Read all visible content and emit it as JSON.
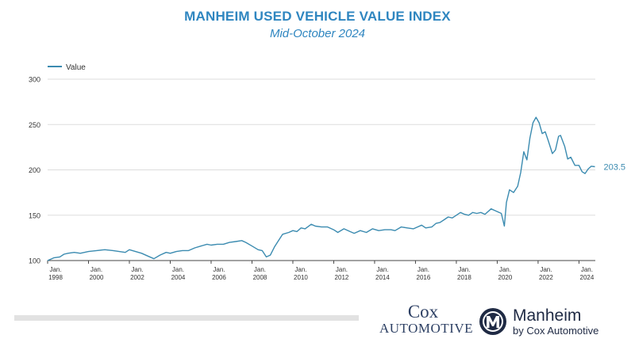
{
  "header": {
    "title": "MANHEIM USED VEHICLE VALUE INDEX",
    "subtitle": "Mid-October 2024"
  },
  "colors": {
    "line": "#3b8bb0",
    "title": "#2f86c0",
    "axis": "#666666",
    "grid": "#dddddd"
  },
  "chart_data": {
    "type": "line",
    "title": "MANHEIM USED VEHICLE VALUE INDEX",
    "subtitle": "Mid-October 2024",
    "legend": {
      "position": "top-left",
      "entries": [
        "Value"
      ]
    },
    "grid": true,
    "ylim": [
      100,
      300
    ],
    "xlim": [
      1998.0,
      2024.8
    ],
    "y_ticks": [
      100,
      150,
      200,
      250,
      300
    ],
    "x_ticks": [
      {
        "value": 1998,
        "line1": "Jan.",
        "line2": "1998"
      },
      {
        "value": 2000,
        "line1": "Jan.",
        "line2": "2000"
      },
      {
        "value": 2002,
        "line1": "Jan.",
        "line2": "2002"
      },
      {
        "value": 2004,
        "line1": "Jan.",
        "line2": "2004"
      },
      {
        "value": 2006,
        "line1": "Jan.",
        "line2": "2006"
      },
      {
        "value": 2008,
        "line1": "Jan.",
        "line2": "2008"
      },
      {
        "value": 2010,
        "line1": "Jan.",
        "line2": "2010"
      },
      {
        "value": 2012,
        "line1": "Jan.",
        "line2": "2012"
      },
      {
        "value": 2014,
        "line1": "Jan.",
        "line2": "2014"
      },
      {
        "value": 2016,
        "line1": "Jan.",
        "line2": "2016"
      },
      {
        "value": 2018,
        "line1": "Jan.",
        "line2": "2018"
      },
      {
        "value": 2020,
        "line1": "Jan.",
        "line2": "2020"
      },
      {
        "value": 2022,
        "line1": "Jan.",
        "line2": "2022"
      },
      {
        "value": 2024,
        "line1": "Jan.",
        "line2": "2024"
      }
    ],
    "last_value_label": "203.5",
    "series": [
      {
        "name": "Value",
        "points": [
          [
            1998.0,
            100
          ],
          [
            1998.3,
            103
          ],
          [
            1998.6,
            104
          ],
          [
            1998.8,
            107
          ],
          [
            1999.0,
            108
          ],
          [
            1999.3,
            109
          ],
          [
            1999.6,
            108
          ],
          [
            2000.0,
            110
          ],
          [
            2000.4,
            111
          ],
          [
            2000.8,
            112
          ],
          [
            2001.2,
            111
          ],
          [
            2001.5,
            110
          ],
          [
            2001.8,
            109
          ],
          [
            2002.0,
            112
          ],
          [
            2002.3,
            110
          ],
          [
            2002.6,
            108
          ],
          [
            2002.9,
            105
          ],
          [
            2003.2,
            102
          ],
          [
            2003.5,
            106
          ],
          [
            2003.8,
            109
          ],
          [
            2004.0,
            108
          ],
          [
            2004.3,
            110
          ],
          [
            2004.6,
            111
          ],
          [
            2004.9,
            111
          ],
          [
            2005.2,
            114
          ],
          [
            2005.5,
            116
          ],
          [
            2005.8,
            118
          ],
          [
            2006.0,
            117
          ],
          [
            2006.3,
            118
          ],
          [
            2006.6,
            118
          ],
          [
            2006.9,
            120
          ],
          [
            2007.2,
            121
          ],
          [
            2007.5,
            122
          ],
          [
            2007.7,
            120
          ],
          [
            2008.0,
            116
          ],
          [
            2008.3,
            112
          ],
          [
            2008.5,
            111
          ],
          [
            2008.7,
            104
          ],
          [
            2008.9,
            106
          ],
          [
            2009.1,
            115
          ],
          [
            2009.3,
            122
          ],
          [
            2009.5,
            129
          ],
          [
            2009.8,
            131
          ],
          [
            2010.0,
            133
          ],
          [
            2010.2,
            132
          ],
          [
            2010.4,
            136
          ],
          [
            2010.6,
            135
          ],
          [
            2010.9,
            140
          ],
          [
            2011.1,
            138
          ],
          [
            2011.4,
            137
          ],
          [
            2011.7,
            137
          ],
          [
            2012.0,
            134
          ],
          [
            2012.2,
            131
          ],
          [
            2012.5,
            135
          ],
          [
            2012.8,
            132
          ],
          [
            2013.0,
            130
          ],
          [
            2013.3,
            133
          ],
          [
            2013.6,
            131
          ],
          [
            2013.9,
            135
          ],
          [
            2014.2,
            133
          ],
          [
            2014.5,
            134
          ],
          [
            2014.8,
            134
          ],
          [
            2015.0,
            133
          ],
          [
            2015.3,
            137
          ],
          [
            2015.6,
            136
          ],
          [
            2015.9,
            135
          ],
          [
            2016.1,
            137
          ],
          [
            2016.3,
            139
          ],
          [
            2016.5,
            136
          ],
          [
            2016.8,
            137
          ],
          [
            2017.0,
            141
          ],
          [
            2017.2,
            142
          ],
          [
            2017.4,
            145
          ],
          [
            2017.6,
            148
          ],
          [
            2017.8,
            147
          ],
          [
            2018.0,
            150
          ],
          [
            2018.2,
            153
          ],
          [
            2018.4,
            151
          ],
          [
            2018.6,
            150
          ],
          [
            2018.8,
            153
          ],
          [
            2019.0,
            152
          ],
          [
            2019.2,
            153
          ],
          [
            2019.4,
            151
          ],
          [
            2019.7,
            157
          ],
          [
            2019.9,
            155
          ],
          [
            2020.2,
            152
          ],
          [
            2020.35,
            138
          ],
          [
            2020.45,
            164
          ],
          [
            2020.6,
            178
          ],
          [
            2020.8,
            175
          ],
          [
            2021.0,
            182
          ],
          [
            2021.15,
            197
          ],
          [
            2021.3,
            220
          ],
          [
            2021.45,
            211
          ],
          [
            2021.6,
            235
          ],
          [
            2021.75,
            252
          ],
          [
            2021.9,
            258
          ],
          [
            2022.05,
            252
          ],
          [
            2022.2,
            240
          ],
          [
            2022.35,
            242
          ],
          [
            2022.5,
            232
          ],
          [
            2022.7,
            218
          ],
          [
            2022.85,
            222
          ],
          [
            2023.0,
            237
          ],
          [
            2023.1,
            238
          ],
          [
            2023.3,
            226
          ],
          [
            2023.45,
            212
          ],
          [
            2023.6,
            214
          ],
          [
            2023.8,
            205
          ],
          [
            2024.0,
            205
          ],
          [
            2024.15,
            198
          ],
          [
            2024.3,
            196
          ],
          [
            2024.45,
            201
          ],
          [
            2024.6,
            204
          ],
          [
            2024.78,
            203.5
          ]
        ]
      }
    ]
  },
  "footer": {
    "cox_top": "Cox",
    "cox_bottom": "AUTOMOTIVE",
    "manheim_name": "Manheim",
    "manheim_sub": "by Cox Automotive"
  }
}
